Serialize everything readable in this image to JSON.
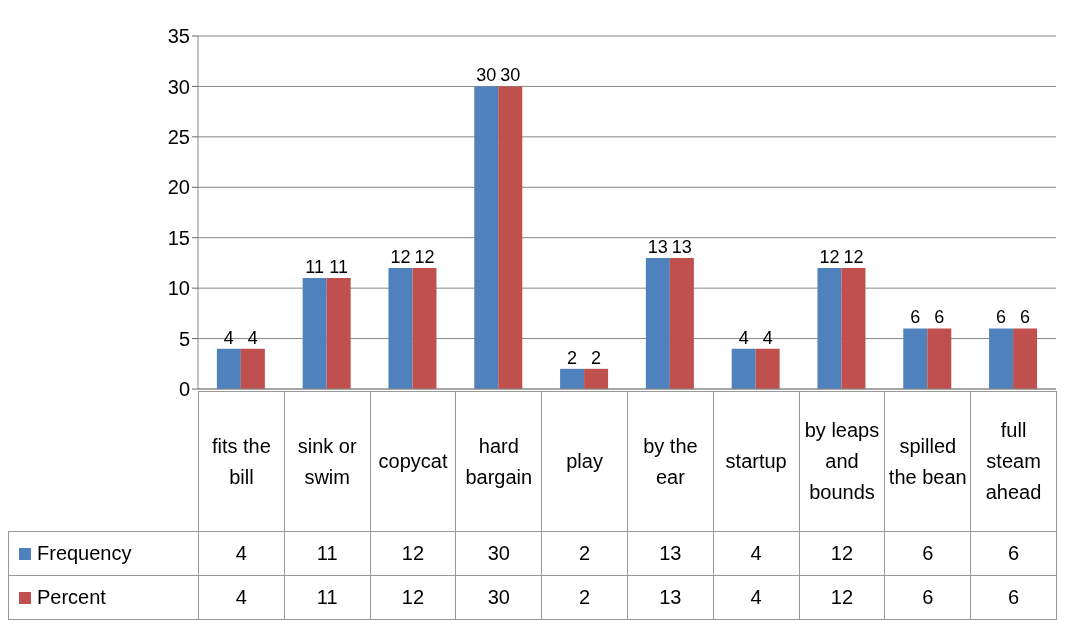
{
  "chart_data": {
    "type": "bar",
    "categories": [
      "fits the bill",
      "sink or swim",
      "copycat",
      "hard bargain",
      "play",
      "by the ear",
      "startup",
      "by leaps and bounds",
      "spilled the bean",
      "full steam ahead"
    ],
    "series": [
      {
        "name": "Frequency",
        "color": "#4f81bd",
        "values": [
          4,
          11,
          12,
          30,
          2,
          13,
          4,
          12,
          6,
          6
        ],
        "value_labels": [
          "4",
          "11",
          "12",
          "30",
          "2",
          "13",
          "4",
          "12",
          "6",
          "6"
        ]
      },
      {
        "name": "Percent",
        "color": "#c0504d",
        "values": [
          4,
          11,
          12,
          30,
          2,
          13,
          4,
          12,
          6,
          6
        ],
        "value_labels": [
          "4",
          "11",
          "12",
          "30",
          "2",
          "13",
          "4",
          "12",
          "6",
          "6"
        ]
      }
    ],
    "annotations": [
      "4",
      "11",
      "12",
      "30",
      "2",
      "13",
      "4",
      "12",
      "6",
      "6",
      "4",
      "11",
      "12",
      "30",
      "2",
      "13",
      "4",
      "12",
      "6",
      "6"
    ],
    "ylim": [
      0,
      35
    ],
    "yticks": [
      0,
      5,
      10,
      15,
      20,
      25,
      30,
      35
    ],
    "grid": "y",
    "legend": "bottom"
  }
}
